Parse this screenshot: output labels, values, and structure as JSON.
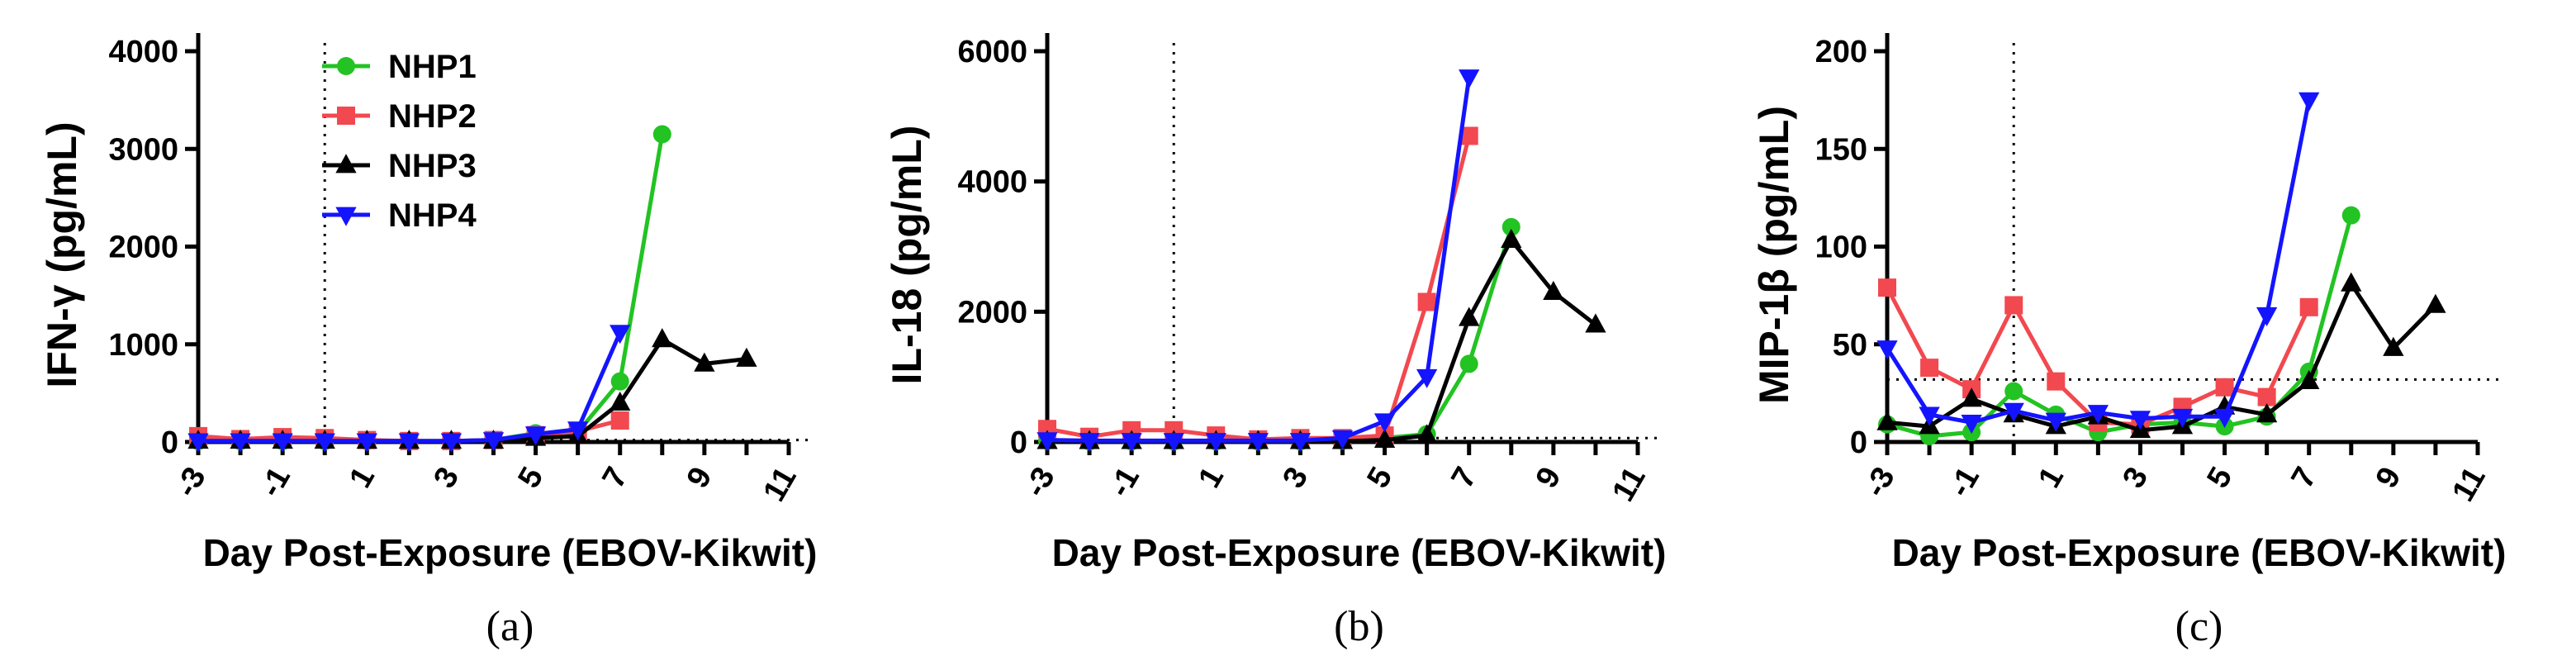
{
  "colors": {
    "NHP1": "#22c322",
    "NHP2": "#f2484f",
    "NHP3": "#000000",
    "NHP4": "#1414ff"
  },
  "chart_data": [
    {
      "type": "line",
      "panel_label": "(a)",
      "ylabel": "IFN-γ (pg/mL)",
      "xlabel": "Day Post-Exposure (EBOV-Kikwit)",
      "xlim": [
        -3,
        11
      ],
      "ylim": [
        0,
        4000
      ],
      "xticks": [
        -3,
        -1,
        1,
        3,
        5,
        7,
        9,
        11
      ],
      "yticks": [
        0,
        1000,
        2000,
        3000,
        4000
      ],
      "vline_x": 0,
      "hline_y": 20,
      "hline_from_x": 4.5,
      "legend": [
        "NHP1",
        "NHP2",
        "NHP3",
        "NHP4"
      ],
      "legend_position": "top-left",
      "series": [
        {
          "name": "NHP1",
          "marker": "circle",
          "points": [
            [
              -3,
              10
            ],
            [
              -2,
              10
            ],
            [
              -1,
              10
            ],
            [
              0,
              10
            ],
            [
              1,
              10
            ],
            [
              2,
              10
            ],
            [
              3,
              10
            ],
            [
              4,
              20
            ],
            [
              5,
              90
            ],
            [
              6,
              100
            ],
            [
              7,
              620
            ],
            [
              8,
              3150
            ]
          ]
        },
        {
          "name": "NHP2",
          "marker": "square",
          "points": [
            [
              -3,
              60
            ],
            [
              -2,
              30
            ],
            [
              -1,
              50
            ],
            [
              0,
              40
            ],
            [
              1,
              20
            ],
            [
              2,
              10
            ],
            [
              3,
              10
            ],
            [
              4,
              20
            ],
            [
              5,
              70
            ],
            [
              6,
              110
            ],
            [
              7,
              220
            ]
          ]
        },
        {
          "name": "NHP3",
          "marker": "triangle-up",
          "points": [
            [
              -3,
              10
            ],
            [
              -2,
              10
            ],
            [
              -1,
              10
            ],
            [
              0,
              10
            ],
            [
              1,
              10
            ],
            [
              2,
              10
            ],
            [
              3,
              10
            ],
            [
              4,
              10
            ],
            [
              5,
              40
            ],
            [
              6,
              60
            ],
            [
              7,
              400
            ],
            [
              8,
              1050
            ],
            [
              9,
              800
            ],
            [
              10,
              850
            ]
          ]
        },
        {
          "name": "NHP4",
          "marker": "triangle-down",
          "points": [
            [
              -3,
              10
            ],
            [
              -2,
              10
            ],
            [
              -1,
              10
            ],
            [
              0,
              10
            ],
            [
              1,
              10
            ],
            [
              2,
              10
            ],
            [
              3,
              10
            ],
            [
              4,
              20
            ],
            [
              5,
              80
            ],
            [
              6,
              130
            ],
            [
              7,
              1120
            ]
          ]
        }
      ]
    },
    {
      "type": "line",
      "panel_label": "(b)",
      "ylabel": "IL-18 (pg/mL)",
      "xlabel": "Day Post-Exposure (EBOV-Kikwit)",
      "xlim": [
        -3,
        11
      ],
      "ylim": [
        0,
        6000
      ],
      "xticks": [
        -3,
        -1,
        1,
        3,
        5,
        7,
        9,
        11
      ],
      "yticks": [
        0,
        2000,
        4000,
        6000
      ],
      "vline_x": 0,
      "hline_y": 60,
      "hline_from_x": 4.5,
      "legend": [],
      "series": [
        {
          "name": "NHP1",
          "marker": "circle",
          "points": [
            [
              -3,
              20
            ],
            [
              -2,
              10
            ],
            [
              -1,
              10
            ],
            [
              0,
              10
            ],
            [
              1,
              10
            ],
            [
              2,
              10
            ],
            [
              3,
              10
            ],
            [
              4,
              20
            ],
            [
              5,
              60
            ],
            [
              6,
              120
            ],
            [
              7,
              1200
            ],
            [
              8,
              3300
            ]
          ]
        },
        {
          "name": "NHP2",
          "marker": "square",
          "points": [
            [
              -3,
              200
            ],
            [
              -2,
              80
            ],
            [
              -1,
              180
            ],
            [
              0,
              180
            ],
            [
              1,
              100
            ],
            [
              2,
              40
            ],
            [
              3,
              60
            ],
            [
              4,
              60
            ],
            [
              5,
              100
            ],
            [
              6,
              2150
            ],
            [
              7,
              4700
            ]
          ]
        },
        {
          "name": "NHP3",
          "marker": "triangle-up",
          "points": [
            [
              -3,
              10
            ],
            [
              -2,
              10
            ],
            [
              -1,
              10
            ],
            [
              0,
              10
            ],
            [
              1,
              10
            ],
            [
              2,
              10
            ],
            [
              3,
              10
            ],
            [
              4,
              10
            ],
            [
              5,
              30
            ],
            [
              6,
              100
            ],
            [
              7,
              1900
            ],
            [
              8,
              3100
            ],
            [
              9,
              2300
            ],
            [
              10,
              1800
            ]
          ]
        },
        {
          "name": "NHP4",
          "marker": "triangle-down",
          "points": [
            [
              -3,
              30
            ],
            [
              -2,
              20
            ],
            [
              -1,
              20
            ],
            [
              0,
              20
            ],
            [
              1,
              20
            ],
            [
              2,
              20
            ],
            [
              3,
              20
            ],
            [
              4,
              60
            ],
            [
              5,
              320
            ],
            [
              6,
              1000
            ],
            [
              7,
              5600
            ]
          ]
        }
      ]
    },
    {
      "type": "line",
      "panel_label": "(c)",
      "ylabel": "MIP-1β (pg/mL)",
      "xlabel": "Day Post-Exposure (EBOV-Kikwit)",
      "xlim": [
        -3,
        11
      ],
      "ylim": [
        0,
        200
      ],
      "xticks": [
        -3,
        -1,
        1,
        3,
        5,
        7,
        9,
        11
      ],
      "yticks": [
        0,
        50,
        100,
        150,
        200
      ],
      "vline_x": 0,
      "hline_y": 32,
      "hline_from_x": -3,
      "legend": [],
      "series": [
        {
          "name": "NHP1",
          "marker": "circle",
          "points": [
            [
              -3,
              9
            ],
            [
              -2,
              3
            ],
            [
              -1,
              5
            ],
            [
              0,
              26
            ],
            [
              1,
              14
            ],
            [
              2,
              5
            ],
            [
              3,
              9
            ],
            [
              4,
              10
            ],
            [
              5,
              8
            ],
            [
              6,
              13
            ],
            [
              7,
              36
            ],
            [
              8,
              116
            ]
          ]
        },
        {
          "name": "NHP2",
          "marker": "square",
          "points": [
            [
              -3,
              79
            ],
            [
              -2,
              38
            ],
            [
              -1,
              27
            ],
            [
              0,
              70
            ],
            [
              1,
              31
            ],
            [
              2,
              10
            ],
            [
              3,
              9
            ],
            [
              4,
              18
            ],
            [
              5,
              28
            ],
            [
              6,
              23
            ],
            [
              7,
              69
            ]
          ]
        },
        {
          "name": "NHP3",
          "marker": "triangle-up",
          "points": [
            [
              -3,
              10
            ],
            [
              -2,
              8
            ],
            [
              -1,
              22
            ],
            [
              0,
              14
            ],
            [
              1,
              8
            ],
            [
              2,
              13
            ],
            [
              3,
              6
            ],
            [
              4,
              8
            ],
            [
              5,
              18
            ],
            [
              6,
              14
            ],
            [
              7,
              31
            ],
            [
              8,
              81
            ],
            [
              9,
              48
            ],
            [
              10,
              70
            ]
          ]
        },
        {
          "name": "NHP4",
          "marker": "triangle-down",
          "points": [
            [
              -3,
              48
            ],
            [
              -2,
              14
            ],
            [
              -1,
              10
            ],
            [
              0,
              16
            ],
            [
              1,
              11
            ],
            [
              2,
              15
            ],
            [
              3,
              12
            ],
            [
              4,
              13
            ],
            [
              5,
              13
            ],
            [
              6,
              65
            ],
            [
              7,
              175
            ]
          ]
        }
      ]
    }
  ]
}
